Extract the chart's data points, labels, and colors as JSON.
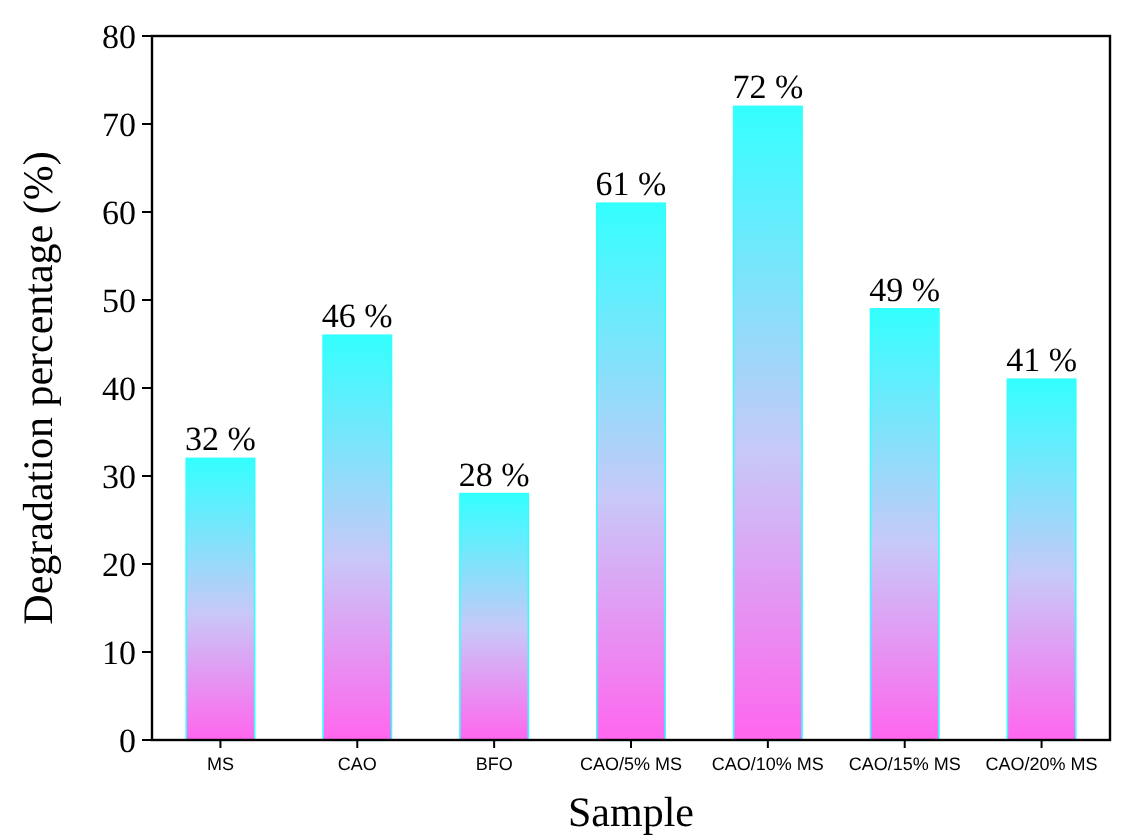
{
  "chart_data": {
    "type": "bar",
    "xlabel": "Sample",
    "ylabel": "Degradation percentage (%)",
    "categories": [
      "MS",
      "CAO",
      "BFO",
      "CAO/5% MS",
      "CAO/10% MS",
      "CAO/15% MS",
      "CAO/20% MS"
    ],
    "values": [
      32,
      46,
      28,
      61,
      72,
      49,
      41
    ],
    "value_labels": [
      "32 %",
      "46 %",
      "28 %",
      "61 %",
      "72 %",
      "49 %",
      "41 %"
    ],
    "color": "#33ffff",
    "ylim": [
      0,
      80
    ],
    "yticks": [
      0,
      10,
      20,
      30,
      40,
      50,
      60,
      70,
      80
    ],
    "grid": false
  }
}
